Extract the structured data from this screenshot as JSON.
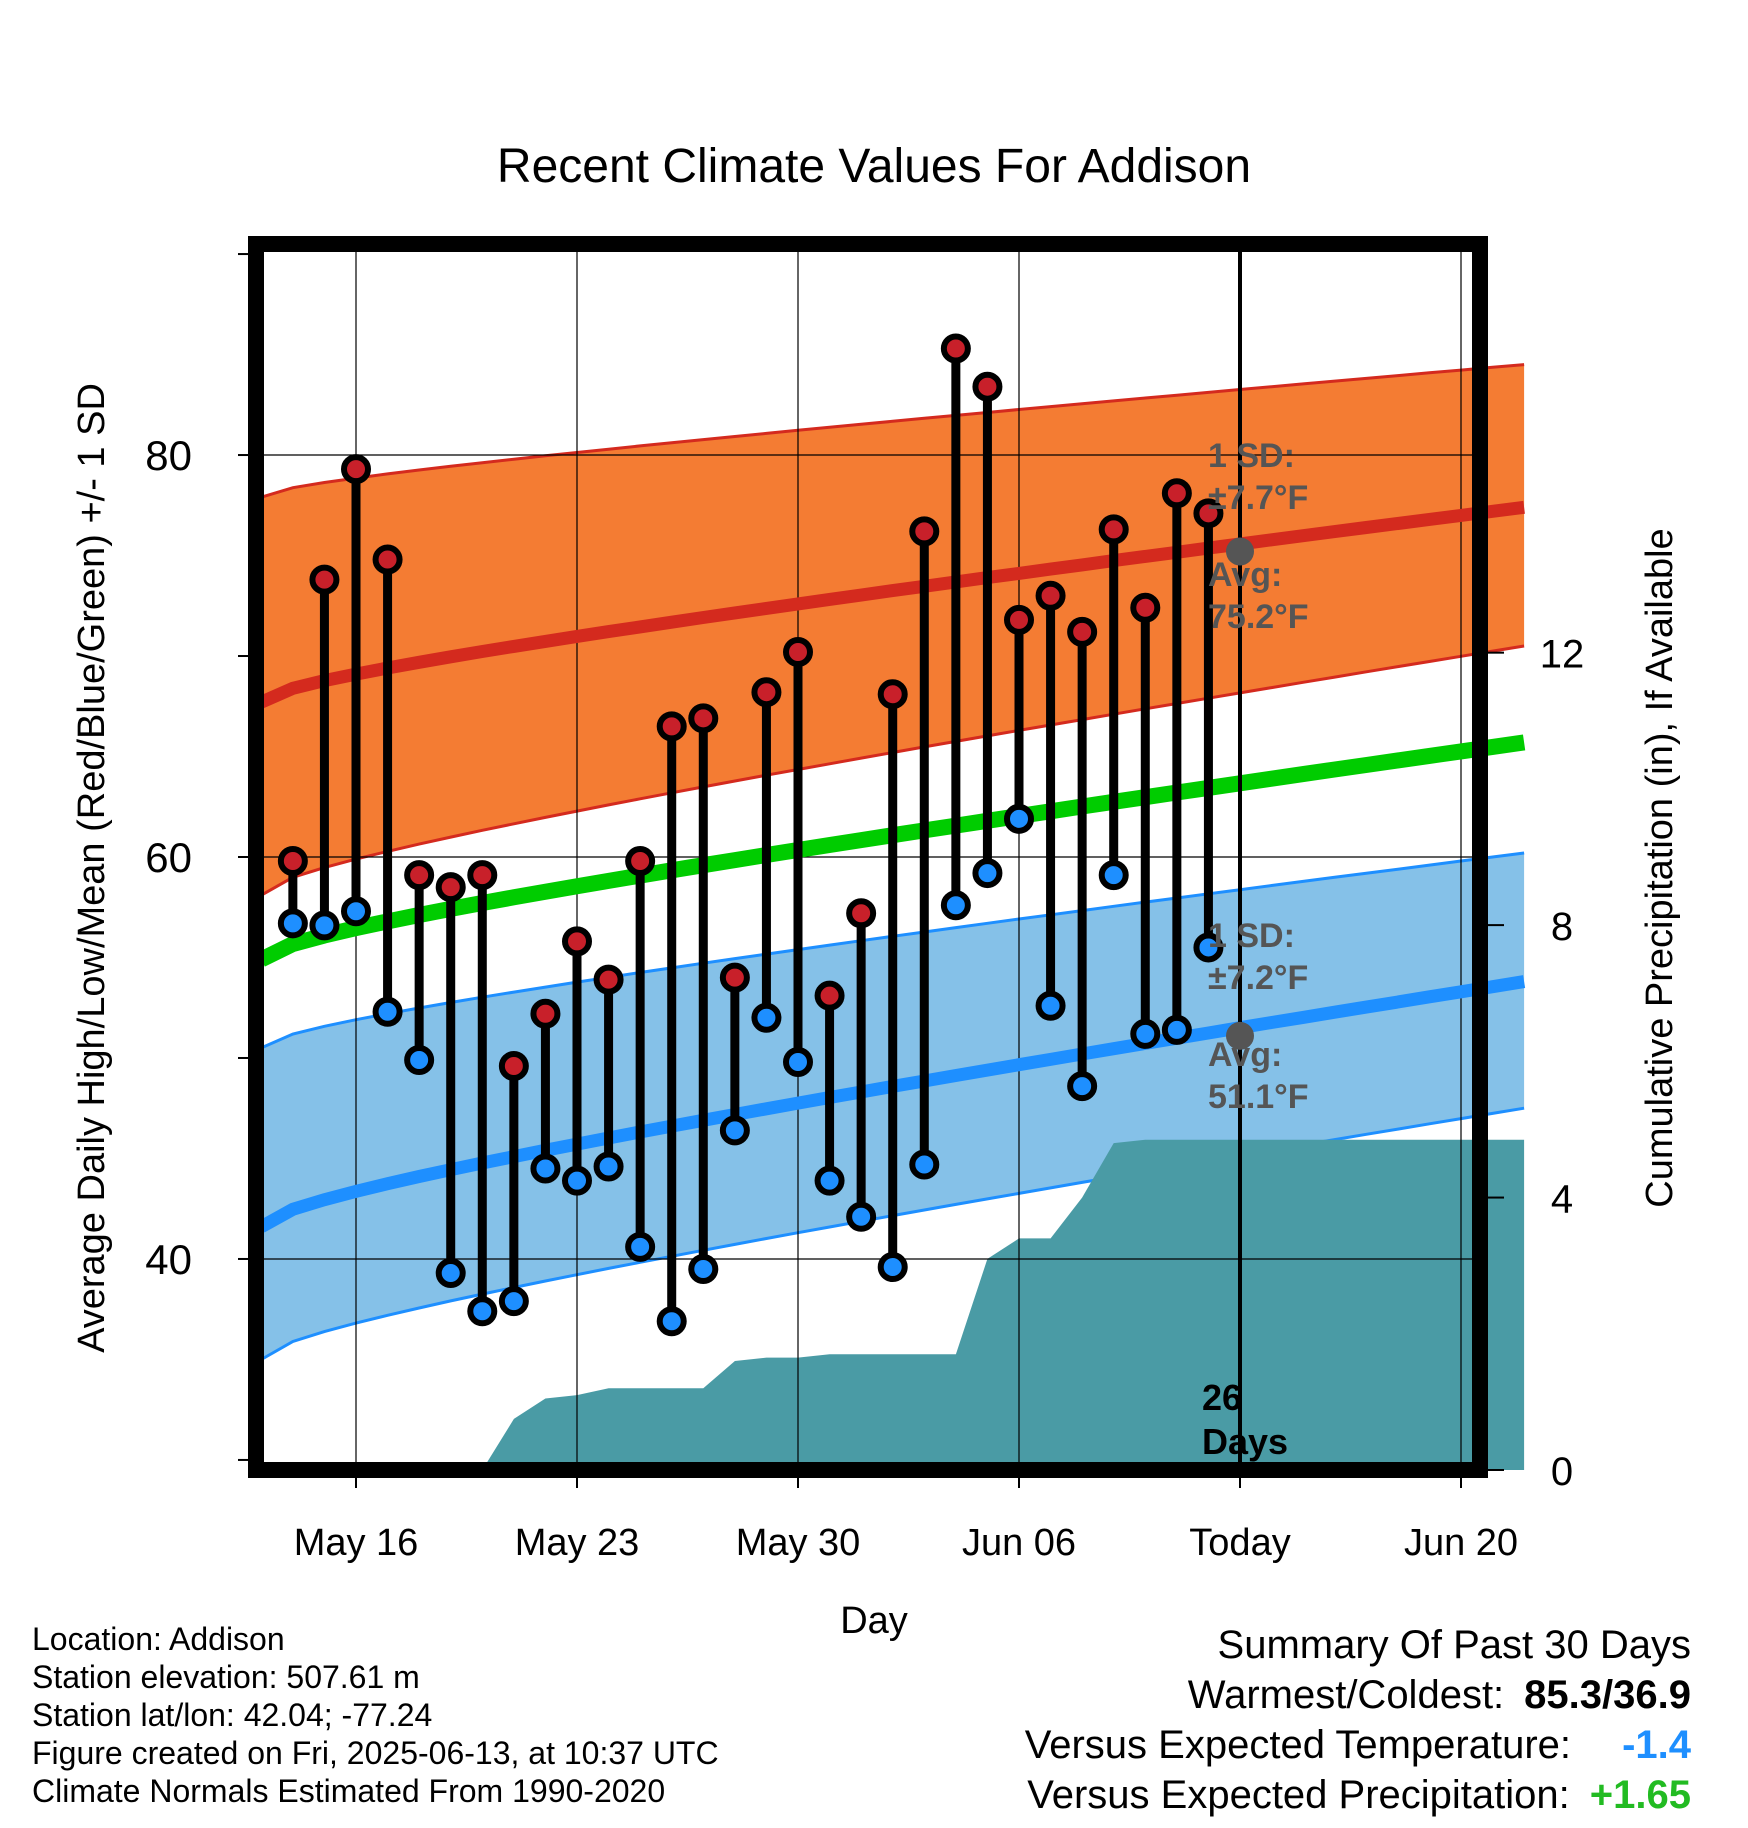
{
  "chart_data": {
    "type": "line",
    "title": "Recent Climate Values For Addison",
    "xlabel": "Day",
    "ylabel": "Average Daily High/Low/Mean (Red/Blue/Green) +/- 1 SD",
    "y2label": "Cumulative Precipitation (in), If Available",
    "x_start_date": "2025-05-13",
    "x_end_date": "2025-06-22",
    "xticks": [
      {
        "date": "2025-05-16",
        "label": "May 16"
      },
      {
        "date": "2025-05-23",
        "label": "May 23"
      },
      {
        "date": "2025-05-30",
        "label": "May 30"
      },
      {
        "date": "2025-06-06",
        "label": "Jun 06"
      },
      {
        "date": "2025-06-13",
        "label": "Today"
      },
      {
        "date": "2025-06-20",
        "label": "Jun 20"
      }
    ],
    "ylim": [
      29.5,
      90.5
    ],
    "yticks": [
      40,
      60,
      80
    ],
    "y_minor_ticks": [
      30,
      50,
      70,
      90
    ],
    "y2lim": [
      0,
      18
    ],
    "y2ticks": [
      0,
      4,
      8,
      12
    ],
    "grid": true,
    "today": "2025-06-13",
    "days_label": "26\nDays",
    "normals": {
      "high_mean": {
        "start": 67.7,
        "end": 77.4,
        "color": "#d42a1e"
      },
      "high_sd_fill": "#f47c33",
      "high_sd_upper": {
        "start": 77.9,
        "end": 84.5
      },
      "high_sd_lower": {
        "start": 58.1,
        "end": 70.5
      },
      "mean": {
        "start": 54.9,
        "end": 65.7,
        "color": "#00cc00"
      },
      "low_mean": {
        "start": 41.6,
        "end": 53.8,
        "color": "#1e8fff"
      },
      "low_sd_fill": "#85c1e8",
      "low_sd_upper": {
        "start": 50.5,
        "end": 60.2
      },
      "low_sd_lower": {
        "start": 35.0,
        "end": 47.5
      }
    },
    "annotations": {
      "high_sd": "1 SD:\n±7.7°F",
      "high_avg": "Avg:\n75.2°F",
      "high_avg_value": 75.2,
      "low_sd": "1 SD:\n±7.2°F",
      "low_avg": "Avg:\n51.1°F",
      "low_avg_value": 51.1
    },
    "series": [
      {
        "name": "High",
        "color": "#c8202a",
        "x": [
          "2025-05-14",
          "2025-05-15",
          "2025-05-16",
          "2025-05-17",
          "2025-05-18",
          "2025-05-19",
          "2025-05-20",
          "2025-05-21",
          "2025-05-22",
          "2025-05-23",
          "2025-05-24",
          "2025-05-25",
          "2025-05-26",
          "2025-05-27",
          "2025-05-28",
          "2025-05-29",
          "2025-05-30",
          "2025-05-31",
          "2025-06-01",
          "2025-06-02",
          "2025-06-03",
          "2025-06-04",
          "2025-06-05",
          "2025-06-06",
          "2025-06-07",
          "2025-06-08",
          "2025-06-09",
          "2025-06-10",
          "2025-06-11",
          "2025-06-12"
        ],
        "values": [
          59.8,
          73.8,
          79.3,
          74.8,
          59.1,
          58.5,
          59.1,
          49.6,
          52.2,
          55.8,
          53.9,
          59.8,
          66.5,
          66.9,
          54.0,
          68.2,
          70.2,
          53.1,
          57.2,
          68.1,
          76.2,
          85.3,
          83.4,
          71.8,
          73.0,
          71.2,
          76.3,
          72.4,
          78.1,
          77.1
        ]
      },
      {
        "name": "Low",
        "color": "#1e8fff",
        "x": [
          "2025-05-14",
          "2025-05-15",
          "2025-05-16",
          "2025-05-17",
          "2025-05-18",
          "2025-05-19",
          "2025-05-20",
          "2025-05-21",
          "2025-05-22",
          "2025-05-23",
          "2025-05-24",
          "2025-05-25",
          "2025-05-26",
          "2025-05-27",
          "2025-05-28",
          "2025-05-29",
          "2025-05-30",
          "2025-05-31",
          "2025-06-01",
          "2025-06-02",
          "2025-06-03",
          "2025-06-04",
          "2025-06-05",
          "2025-06-06",
          "2025-06-07",
          "2025-06-08",
          "2025-06-09",
          "2025-06-10",
          "2025-06-11",
          "2025-06-12"
        ],
        "values": [
          56.7,
          56.6,
          57.3,
          52.3,
          49.9,
          39.3,
          37.4,
          37.9,
          44.5,
          43.9,
          44.6,
          40.6,
          36.9,
          39.5,
          46.4,
          52.0,
          49.8,
          43.9,
          42.1,
          39.6,
          44.7,
          57.6,
          59.2,
          61.9,
          52.6,
          48.6,
          59.1,
          51.2,
          51.4,
          55.5
        ]
      },
      {
        "name": "Precipitation",
        "color": "#4a9ba5",
        "x": [
          "2025-05-20",
          "2025-05-21",
          "2025-05-22",
          "2025-05-23",
          "2025-05-24",
          "2025-05-25",
          "2025-05-26",
          "2025-05-27",
          "2025-05-28",
          "2025-05-29",
          "2025-05-30",
          "2025-05-31",
          "2025-06-01",
          "2025-06-02",
          "2025-06-03",
          "2025-06-04",
          "2025-06-05",
          "2025-06-06",
          "2025-06-07",
          "2025-06-08",
          "2025-06-09",
          "2025-06-10",
          "2025-06-11",
          "2025-06-12",
          "2025-06-13",
          "2025-06-22"
        ],
        "values": [
          0,
          0.75,
          1.05,
          1.1,
          1.2,
          1.2,
          1.2,
          1.2,
          1.6,
          1.65,
          1.65,
          1.7,
          1.7,
          1.7,
          1.7,
          1.7,
          3.1,
          3.4,
          3.4,
          4.0,
          4.8,
          4.85,
          4.85,
          4.85,
          4.85,
          4.85
        ]
      }
    ],
    "colors": {
      "high_marker": "#c8202a",
      "low_marker": "#1e8fff",
      "precip_fill": "#4a9ba5",
      "annotation_text": "#555555",
      "avg_marker": "#555555"
    }
  },
  "info": {
    "location": "Location: Addison",
    "elevation": "Station elevation: 507.61 m",
    "latlon": "Station lat/lon: 42.04; -77.24",
    "created": "Figure created on Fri, 2025-06-13, at 10:37 UTC",
    "normals": "Climate Normals Estimated From 1990-2020"
  },
  "summary": {
    "title": "Summary Of Past 30 Days",
    "warmest_label": "Warmest/Coldest:",
    "warmest_value": "85.3/36.9",
    "temp_label": "Versus Expected Temperature:",
    "temp_value": "-1.4",
    "temp_color": "#1e8fff",
    "precip_label": "Versus Expected Precipitation:",
    "precip_value": "+1.65",
    "precip_color": "#22bb22"
  }
}
